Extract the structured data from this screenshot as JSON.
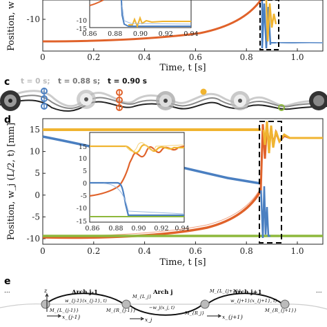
{
  "panels": {
    "b": {
      "xlabel": "Time, t [s]",
      "ylabel_partial": "Position, w",
      "x_ticks": [
        "0",
        "0.2",
        "0.4",
        "0.6",
        "0.8",
        "1.0"
      ],
      "y_ticks": [
        "-10"
      ],
      "inset_x_ticks": [
        "0.86",
        "0.88",
        "0.90",
        "0.92",
        "0.94"
      ],
      "inset_y_ticks": [
        "-10",
        "-15"
      ]
    },
    "c": {
      "letter": "c",
      "caption_t0": "t = 0 s;",
      "caption_t1": "t = 0.88 s;",
      "caption_t2": "t = 0.90 s"
    },
    "d": {
      "letter": "d",
      "xlabel": "Time, t [s]",
      "ylabel": "Position, w_j (L/2, t) [mm]",
      "x_ticks": [
        "0",
        "0.2",
        "0.4",
        "0.6",
        "0.8",
        "1.0"
      ],
      "y_ticks": [
        "15",
        "10",
        "5",
        "0",
        "-5",
        "-10"
      ],
      "inset_x_ticks": [
        "0.86",
        "0.88",
        "0.90",
        "0.92",
        "0.94"
      ],
      "inset_y_ticks": [
        "15",
        "10",
        "5",
        "0",
        "-5",
        "-10",
        "-15"
      ]
    },
    "e": {
      "letter": "e",
      "labels": {
        "z": "z",
        "arch_prev": "Arch j-1",
        "arch_cur": "Arch j",
        "arch_next": "Arch j+1",
        "w_prev": "w_{j-1}(x_{j-1}, t)",
        "w_cur": "−w_j(x_j, t)",
        "w_next": "w_{j+1}(x_{j+1}, t)",
        "M_L_prev": "M_{L_{j-1}}",
        "M_R_prev": "M_{R_{j-1}}",
        "M_L_cur": "M_{L_j}",
        "M_R_cur": "M_{R_j}",
        "M_L_next": "M_{L_{j+1}}",
        "M_R_next": "M_{R_{j+1}}",
        "x_prev": "x_{j-1}",
        "x_cur": "x_j",
        "x_next": "x_{j+1}",
        "dots_left": "...",
        "dots_right": "..."
      }
    }
  },
  "colors": {
    "blue": "#4a7fc1",
    "orange": "#e0622a",
    "yellow": "#f0b430",
    "green": "#8db83c",
    "axis": "#222222",
    "box": "#000000"
  },
  "chart_data": [
    {
      "type": "line",
      "panel": "b",
      "xlabel": "Time, t [s]",
      "ylabel": "Position, w",
      "xlim": [
        0,
        1.1
      ],
      "series": [
        {
          "color": "orange",
          "x": [
            0,
            0.2,
            0.4,
            0.6,
            0.7,
            0.8,
            0.85,
            0.88
          ],
          "y": [
            -12.5,
            -12.3,
            -11.8,
            -10.8,
            -9.5,
            -7,
            -4,
            0
          ]
        }
      ]
    },
    {
      "type": "line",
      "panel": "d",
      "xlabel": "Time, t [s]",
      "ylabel": "Position, w_j (L/2, t) [mm]",
      "xlim": [
        0,
        1.1
      ],
      "ylim": [
        -12.5,
        14
      ],
      "series": [
        {
          "color": "yellow",
          "x": [
            0,
            0.88,
            0.9,
            0.92,
            0.94,
            1.1
          ],
          "y": [
            12.2,
            12.2,
            13,
            10,
            12,
            10.6
          ]
        },
        {
          "color": "blue",
          "x": [
            0,
            0.2,
            0.4,
            0.6,
            0.8,
            0.87,
            0.88,
            0.9,
            1.1
          ],
          "y": [
            10.5,
            8.5,
            6.3,
            4,
            1.5,
            0.5,
            -5,
            -12.2,
            -12.2
          ]
        },
        {
          "color": "orange",
          "x": [
            0,
            0.2,
            0.4,
            0.6,
            0.7,
            0.8,
            0.85,
            0.88,
            0.9,
            0.92,
            1.1
          ],
          "y": [
            -12.3,
            -12.6,
            -12.2,
            -11,
            -9.8,
            -7,
            -4,
            0,
            12,
            9,
            10.6
          ]
        },
        {
          "color": "green",
          "x": [
            0,
            1.1
          ],
          "y": [
            -12.1,
            -12.1
          ]
        }
      ]
    }
  ]
}
